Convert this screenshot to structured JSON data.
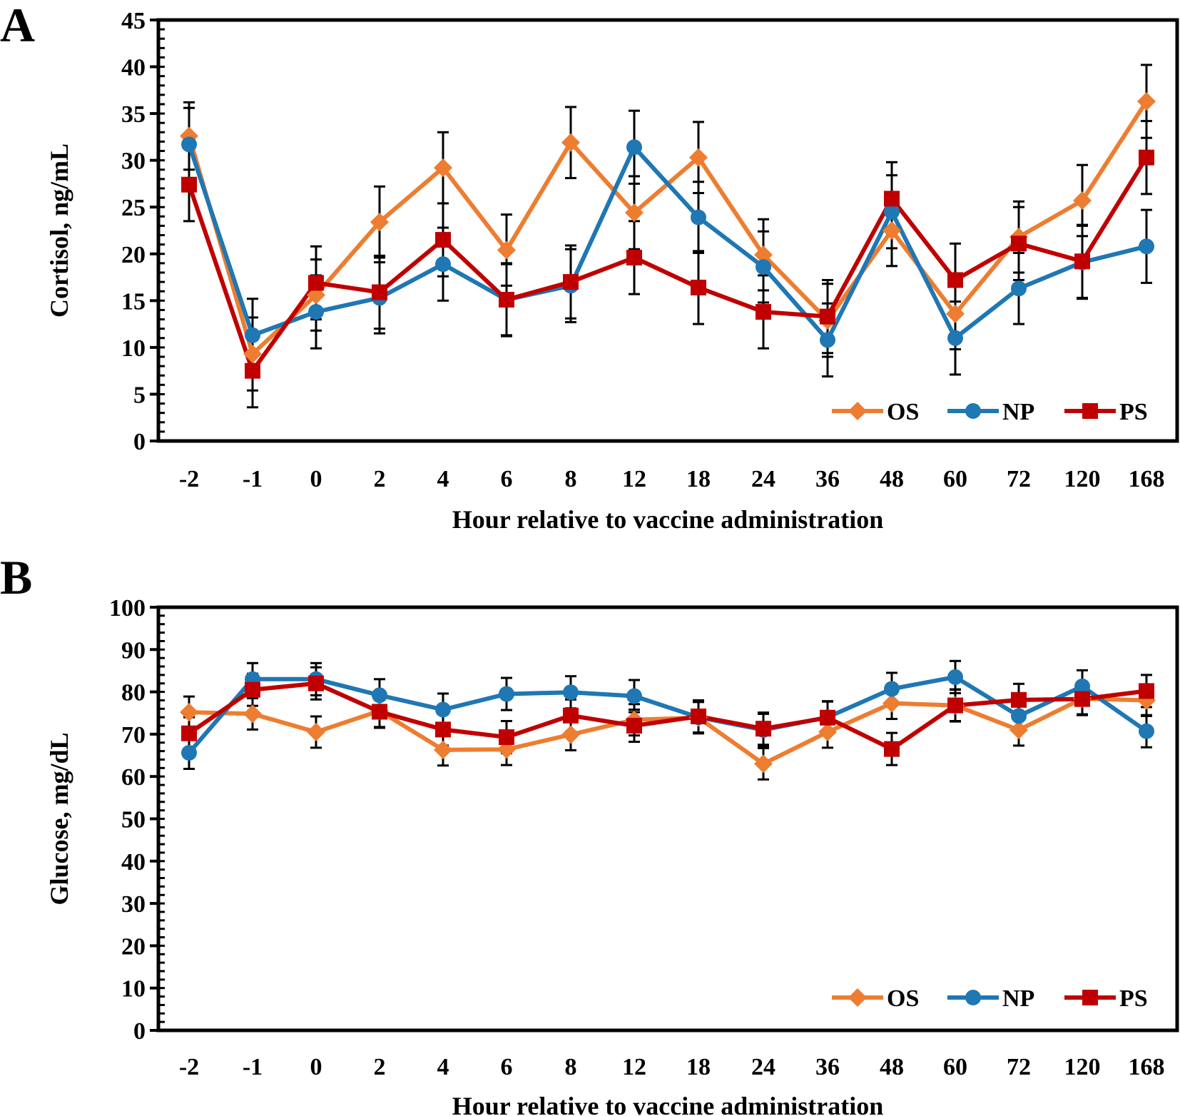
{
  "chart_data": [
    {
      "panel_label": "A",
      "type": "line",
      "xlabel": "Hour relative to vaccine administration",
      "ylabel": "Cortisol, ng/mL",
      "ylim": [
        0,
        45
      ],
      "yticks": [
        "0",
        "5",
        "10",
        "15",
        "20",
        "25",
        "30",
        "35",
        "40",
        "45"
      ],
      "categories": [
        "-2",
        "-1",
        "0",
        "2",
        "4",
        "6",
        "8",
        "12",
        "18",
        "24",
        "36",
        "48",
        "60",
        "72",
        "120",
        "168"
      ],
      "legend_position": "bottom-right",
      "series": [
        {
          "name": "OS",
          "color": "#ED7D31",
          "marker": "diamond",
          "values": [
            32.6,
            9.3,
            15.6,
            23.4,
            29.2,
            20.4,
            31.9,
            24.4,
            30.3,
            19.9,
            12.9,
            22.5,
            13.6,
            21.8,
            25.7,
            36.3
          ],
          "errors": [
            3.6,
            3.9,
            3.8,
            3.8,
            3.8,
            3.8,
            3.8,
            3.9,
            3.8,
            3.8,
            3.9,
            3.8,
            3.8,
            3.8,
            3.8,
            3.9
          ]
        },
        {
          "name": "NP",
          "color": "#1F77B4",
          "marker": "circle",
          "values": [
            31.7,
            11.3,
            13.8,
            15.3,
            18.9,
            15.1,
            16.6,
            31.4,
            23.9,
            18.6,
            10.8,
            24.5,
            11.0,
            16.3,
            19.1,
            20.8
          ],
          "errors": [
            3.9,
            3.9,
            3.9,
            3.8,
            3.9,
            3.8,
            3.9,
            3.9,
            3.8,
            3.8,
            3.9,
            3.9,
            3.9,
            3.8,
            3.9,
            3.9
          ]
        },
        {
          "name": "PS",
          "color": "#C00000",
          "marker": "square",
          "values": [
            27.4,
            7.5,
            16.9,
            15.9,
            21.5,
            15.1,
            17.0,
            19.6,
            16.4,
            13.8,
            13.3,
            25.9,
            17.2,
            21.1,
            19.2,
            30.3
          ],
          "errors": [
            3.9,
            3.9,
            3.9,
            3.9,
            3.9,
            3.9,
            3.9,
            3.9,
            3.9,
            3.9,
            3.9,
            3.9,
            3.9,
            3.9,
            3.9,
            3.9
          ]
        }
      ]
    },
    {
      "panel_label": "B",
      "type": "line",
      "xlabel": "Hour relative to vaccine administration",
      "ylabel": "Glucose, mg/dL",
      "ylim": [
        0,
        100
      ],
      "yticks": [
        "0",
        "10",
        "20",
        "30",
        "40",
        "50",
        "60",
        "70",
        "80",
        "90",
        "100"
      ],
      "categories": [
        "-2",
        "-1",
        "0",
        "2",
        "4",
        "6",
        "8",
        "12",
        "18",
        "24",
        "36",
        "48",
        "60",
        "72",
        "120",
        "168"
      ],
      "legend_position": "bottom-right",
      "series": [
        {
          "name": "OS",
          "color": "#ED7D31",
          "marker": "diamond",
          "values": [
            75.2,
            74.8,
            70.5,
            75.5,
            66.3,
            66.4,
            69.9,
            73.4,
            73.9,
            63.0,
            70.5,
            77.3,
            76.8,
            71.0,
            78.4,
            78.0
          ],
          "errors": [
            3.7,
            3.7,
            3.7,
            3.8,
            3.7,
            3.7,
            3.7,
            3.7,
            3.7,
            3.7,
            3.7,
            3.7,
            3.7,
            3.7,
            3.7,
            3.7
          ]
        },
        {
          "name": "NP",
          "color": "#1F77B4",
          "marker": "circle",
          "values": [
            65.6,
            83.0,
            83.0,
            79.2,
            75.8,
            79.5,
            79.9,
            79.0,
            74.0,
            71.0,
            74.0,
            80.7,
            83.5,
            74.3,
            81.3,
            70.7
          ],
          "errors": [
            3.8,
            3.8,
            3.8,
            3.8,
            3.8,
            3.8,
            3.8,
            3.8,
            3.8,
            3.8,
            3.8,
            3.8,
            3.8,
            3.8,
            3.8,
            3.8
          ]
        },
        {
          "name": "PS",
          "color": "#C00000",
          "marker": "square",
          "values": [
            70.2,
            80.5,
            82.0,
            75.3,
            71.1,
            69.3,
            74.4,
            72.0,
            74.2,
            71.3,
            73.9,
            66.5,
            76.8,
            78.1,
            78.3,
            80.2
          ],
          "errors": [
            3.8,
            3.8,
            3.8,
            3.8,
            3.8,
            3.8,
            3.8,
            3.8,
            3.8,
            3.8,
            3.8,
            3.8,
            3.8,
            3.8,
            3.8,
            3.8
          ]
        }
      ]
    }
  ]
}
